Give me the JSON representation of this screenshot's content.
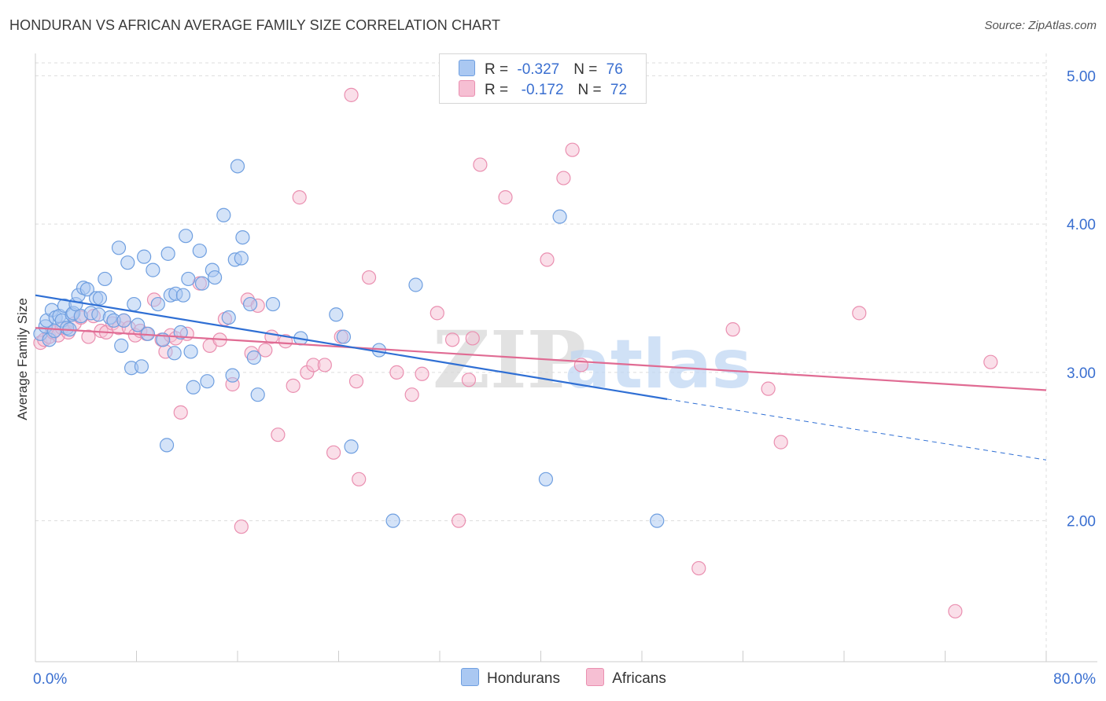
{
  "header": {
    "title": "HONDURAN VS AFRICAN AVERAGE FAMILY SIZE CORRELATION CHART",
    "source": "Source: ZipAtlas.com"
  },
  "watermark": {
    "zip": "ZIP",
    "atlas": "atlas"
  },
  "legend_top": {
    "rows": [
      {
        "r_label": "R = ",
        "r_value": "-0.327",
        "n_label": "N = ",
        "n_value": "76"
      },
      {
        "r_label": "R = ",
        "r_value": " -0.172",
        "n_label": "N = ",
        "n_value": "72"
      }
    ]
  },
  "colors": {
    "hondurans_fill": "#aac8f2",
    "hondurans_stroke": "#6f9fe0",
    "hondurans_line": "#2f6fd4",
    "africans_fill": "#f6bfd3",
    "africans_stroke": "#ea8fb0",
    "africans_line": "#e06b93",
    "tick_label": "#3a6fd0",
    "grid": "#dddddd"
  },
  "chart_data": {
    "type": "scatter",
    "ylabel": "Average Family Size",
    "x_tick_labels": [
      "0.0%",
      "80.0%"
    ],
    "y_tick_labels": [
      "2.00",
      "3.00",
      "4.00",
      "5.00"
    ],
    "y_ticks": [
      2,
      3,
      4,
      5
    ],
    "xlim": [
      0,
      80
    ],
    "ylim": [
      1.05,
      5.15
    ],
    "grid": true,
    "legend": "bottom-center",
    "series": [
      {
        "name": "Hondurans",
        "points": [
          [
            0.4,
            3.26
          ],
          [
            0.8,
            3.31
          ],
          [
            0.9,
            3.35
          ],
          [
            1.1,
            3.22
          ],
          [
            1.3,
            3.42
          ],
          [
            1.5,
            3.28
          ],
          [
            1.6,
            3.37
          ],
          [
            1.9,
            3.38
          ],
          [
            2.1,
            3.35
          ],
          [
            2.3,
            3.45
          ],
          [
            2.5,
            3.3
          ],
          [
            2.7,
            3.29
          ],
          [
            2.9,
            3.39
          ],
          [
            3.0,
            3.4
          ],
          [
            3.2,
            3.46
          ],
          [
            3.4,
            3.52
          ],
          [
            3.6,
            3.38
          ],
          [
            3.8,
            3.57
          ],
          [
            4.1,
            3.56
          ],
          [
            4.4,
            3.4
          ],
          [
            4.8,
            3.5
          ],
          [
            5.0,
            3.39
          ],
          [
            5.1,
            3.5
          ],
          [
            5.5,
            3.63
          ],
          [
            5.9,
            3.37
          ],
          [
            6.2,
            3.35
          ],
          [
            6.6,
            3.84
          ],
          [
            6.8,
            3.18
          ],
          [
            7.0,
            3.35
          ],
          [
            7.3,
            3.74
          ],
          [
            7.6,
            3.03
          ],
          [
            7.8,
            3.46
          ],
          [
            8.1,
            3.32
          ],
          [
            8.4,
            3.04
          ],
          [
            8.6,
            3.78
          ],
          [
            8.9,
            3.26
          ],
          [
            9.3,
            3.69
          ],
          [
            9.7,
            3.46
          ],
          [
            10.1,
            3.22
          ],
          [
            10.4,
            2.51
          ],
          [
            10.5,
            3.8
          ],
          [
            10.7,
            3.52
          ],
          [
            11.0,
            3.13
          ],
          [
            11.1,
            3.53
          ],
          [
            11.5,
            3.27
          ],
          [
            11.7,
            3.52
          ],
          [
            11.9,
            3.92
          ],
          [
            12.1,
            3.63
          ],
          [
            12.3,
            3.14
          ],
          [
            12.5,
            2.9
          ],
          [
            13.0,
            3.82
          ],
          [
            13.2,
            3.6
          ],
          [
            13.6,
            2.94
          ],
          [
            14.0,
            3.69
          ],
          [
            14.2,
            3.64
          ],
          [
            14.9,
            4.06
          ],
          [
            15.3,
            3.37
          ],
          [
            15.6,
            2.98
          ],
          [
            16.0,
            4.39
          ],
          [
            15.8,
            3.76
          ],
          [
            16.3,
            3.77
          ],
          [
            16.4,
            3.91
          ],
          [
            17.0,
            3.46
          ],
          [
            17.3,
            3.1
          ],
          [
            17.6,
            2.85
          ],
          [
            18.8,
            3.46
          ],
          [
            21.0,
            3.23
          ],
          [
            23.8,
            3.39
          ],
          [
            24.4,
            3.24
          ],
          [
            25.0,
            2.5
          ],
          [
            27.2,
            3.15
          ],
          [
            28.3,
            2.0
          ],
          [
            30.1,
            3.59
          ],
          [
            40.4,
            2.28
          ],
          [
            41.5,
            4.05
          ],
          [
            49.2,
            2.0
          ]
        ]
      },
      {
        "name": "Africans",
        "points": [
          [
            0.4,
            3.2
          ],
          [
            0.7,
            3.22
          ],
          [
            1.1,
            3.24
          ],
          [
            1.4,
            3.27
          ],
          [
            1.8,
            3.25
          ],
          [
            2.1,
            3.3
          ],
          [
            2.6,
            3.27
          ],
          [
            3.1,
            3.33
          ],
          [
            3.6,
            3.37
          ],
          [
            4.2,
            3.24
          ],
          [
            4.6,
            3.38
          ],
          [
            5.2,
            3.28
          ],
          [
            5.6,
            3.27
          ],
          [
            6.1,
            3.33
          ],
          [
            6.6,
            3.3
          ],
          [
            7.0,
            3.35
          ],
          [
            7.4,
            3.3
          ],
          [
            7.9,
            3.25
          ],
          [
            8.3,
            3.28
          ],
          [
            8.8,
            3.26
          ],
          [
            9.4,
            3.49
          ],
          [
            10.0,
            3.22
          ],
          [
            10.3,
            3.14
          ],
          [
            10.7,
            3.25
          ],
          [
            11.1,
            3.23
          ],
          [
            11.5,
            2.73
          ],
          [
            12.0,
            3.26
          ],
          [
            13.0,
            3.6
          ],
          [
            13.8,
            3.18
          ],
          [
            14.6,
            3.22
          ],
          [
            15.0,
            3.36
          ],
          [
            15.6,
            2.92
          ],
          [
            16.3,
            1.96
          ],
          [
            16.8,
            3.49
          ],
          [
            17.1,
            3.13
          ],
          [
            17.6,
            3.45
          ],
          [
            18.2,
            3.15
          ],
          [
            18.7,
            3.24
          ],
          [
            19.2,
            2.58
          ],
          [
            19.8,
            3.21
          ],
          [
            20.4,
            2.91
          ],
          [
            20.9,
            4.18
          ],
          [
            21.5,
            3.0
          ],
          [
            22.0,
            3.05
          ],
          [
            22.9,
            3.05
          ],
          [
            23.6,
            2.46
          ],
          [
            24.2,
            3.24
          ],
          [
            25.0,
            4.87
          ],
          [
            25.4,
            2.94
          ],
          [
            25.6,
            2.28
          ],
          [
            26.4,
            3.64
          ],
          [
            28.6,
            3.0
          ],
          [
            29.8,
            2.85
          ],
          [
            30.6,
            2.99
          ],
          [
            31.8,
            3.4
          ],
          [
            33.0,
            3.22
          ],
          [
            33.5,
            2.0
          ],
          [
            34.3,
            2.95
          ],
          [
            34.6,
            3.23
          ],
          [
            35.2,
            4.4
          ],
          [
            37.2,
            4.18
          ],
          [
            40.5,
            3.76
          ],
          [
            41.8,
            4.31
          ],
          [
            42.5,
            4.5
          ],
          [
            43.2,
            3.05
          ],
          [
            52.5,
            1.68
          ],
          [
            55.2,
            3.29
          ],
          [
            58.0,
            2.89
          ],
          [
            59.0,
            2.53
          ],
          [
            65.2,
            3.4
          ],
          [
            72.8,
            1.39
          ],
          [
            75.6,
            3.07
          ]
        ]
      }
    ],
    "trendlines": [
      {
        "name": "Hondurans",
        "x": [
          0,
          50
        ],
        "y": [
          3.52,
          2.82
        ],
        "dashed_to": [
          80,
          2.41
        ]
      },
      {
        "name": "Africans",
        "x": [
          0,
          80
        ],
        "y": [
          3.3,
          2.88
        ]
      }
    ]
  },
  "legend_bottom": {
    "items": [
      "Hondurans",
      "Africans"
    ]
  }
}
